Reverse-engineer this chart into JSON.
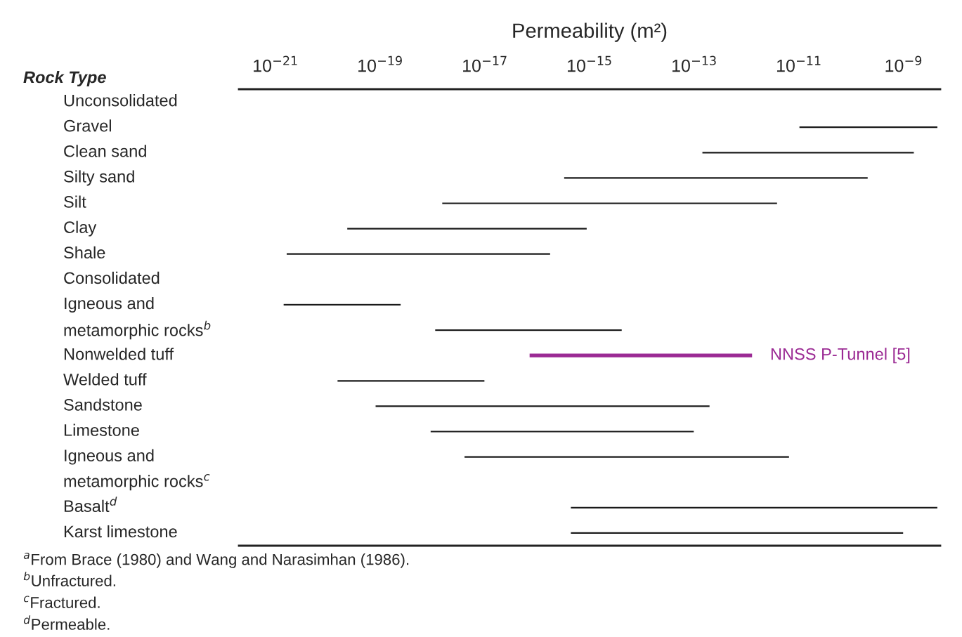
{
  "chart_data": {
    "type": "bar",
    "orientation": "horizontal",
    "log": "x",
    "xlabel": "Permeability (m²)",
    "ylabel": "Rock Type",
    "categories": [
      "Unconsolidated",
      "Gravel",
      "Clean sand",
      "Silty sand",
      "Silt",
      "Clay",
      "Shale",
      "Consolidated",
      "Igneous and",
      "metamorphic rocks$^{b}$",
      "Nonwelded tuff",
      "Welded tuff",
      "Sandstone",
      "Limestone",
      "Igneous and",
      "metamorphic rocks$^{c}$",
      "Basalt$^{d}$",
      "Karst limestone"
    ],
    "series": [
      {
        "color": "#1a1a1a",
        "base": [
          null,
          1e-11,
          1.4e-13,
          3.2e-16,
          1.5e-18,
          2.3e-20,
          1.6e-21,
          null,
          1.4e-21,
          1.1e-18,
          null,
          1.5e-20,
          8e-20,
          9e-19,
          4e-18,
          null,
          4.3e-16,
          4.3e-16
        ],
        "values": [
          null,
          4.5e-09,
          1.6e-09,
          2.1e-10,
          3.9e-12,
          9e-16,
          1.8e-16,
          null,
          2.5e-19,
          4.2e-15,
          null,
          1e-17,
          2e-13,
          1e-13,
          6.6e-12,
          null,
          4.5e-09,
          1e-09
        ]
      },
      {
        "name": "NNSS P-Tunnel [5]",
        "color": "#9b2a94",
        "base": [
          null,
          null,
          null,
          null,
          null,
          null,
          null,
          null,
          null,
          null,
          7e-17,
          null,
          null,
          null,
          null,
          null,
          null,
          null
        ],
        "values": [
          null,
          null,
          null,
          null,
          null,
          null,
          null,
          null,
          null,
          null,
          1.3e-12,
          null,
          null,
          null,
          null,
          null,
          null,
          null
        ]
      }
    ],
    "xlim": [
      2e-22,
      5e-09
    ],
    "xticks": [
      {
        "value": 1e-21,
        "label": "10$^{−21}$"
      },
      {
        "value": 1e-19,
        "label": "10$^{−19}$"
      },
      {
        "value": 1e-17,
        "label": "10$^{−17}$"
      },
      {
        "value": 1e-15,
        "label": "10$^{−15}$"
      },
      {
        "value": 1e-13,
        "label": "10$^{−13}$"
      },
      {
        "value": 1e-11,
        "label": "10$^{−11}$"
      },
      {
        "value": 1e-09,
        "label": "10$^{−9}$"
      }
    ],
    "annotations": [
      "$^{a}$From Brace (1980) and Wang and Narasimhan (1986).",
      "$^{b}$Unfractured.",
      "$^{c}$Fractured.",
      "$^{d}$Permeable."
    ]
  }
}
